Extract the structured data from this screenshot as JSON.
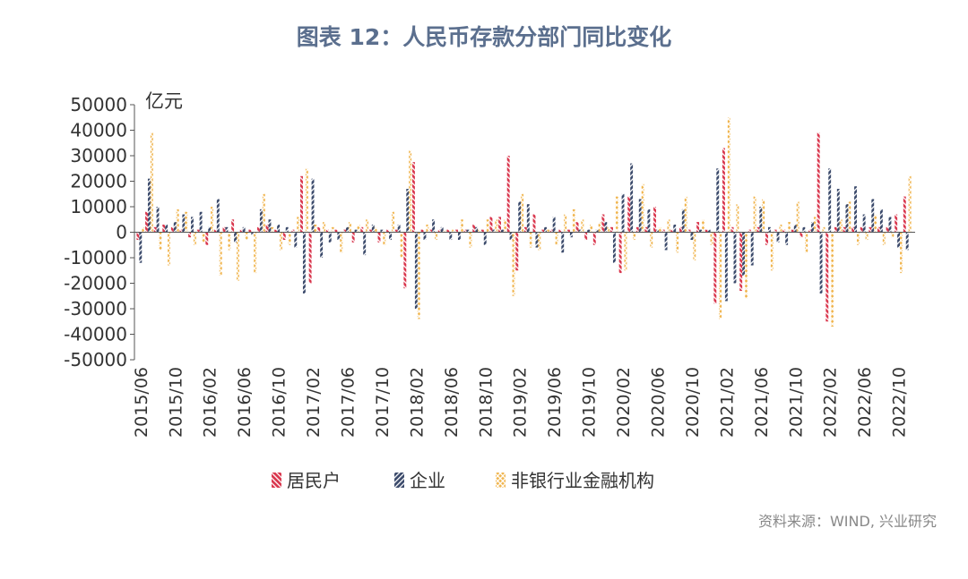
{
  "chart_data": {
    "type": "bar",
    "title": "图表 12：人民币存款分部门同比变化",
    "y_label": "亿元",
    "source": "资料来源：WIND, 兴业研究",
    "categories": [
      "2015/06",
      null,
      null,
      null,
      "2015/10",
      null,
      null,
      null,
      "2016/02",
      null,
      null,
      null,
      "2016/06",
      null,
      null,
      null,
      "2016/10",
      null,
      null,
      null,
      "2017/02",
      null,
      null,
      null,
      "2017/06",
      null,
      null,
      null,
      "2017/10",
      null,
      null,
      null,
      "2018/02",
      null,
      null,
      null,
      "2018/06",
      null,
      null,
      null,
      "2018/10",
      null,
      null,
      null,
      "2019/02",
      null,
      null,
      null,
      "2019/06",
      null,
      null,
      null,
      "2019/10",
      null,
      null,
      null,
      "2020/02",
      null,
      null,
      null,
      "2020/06",
      null,
      null,
      null,
      "2020/10",
      null,
      null,
      null,
      "2021/02",
      null,
      null,
      null,
      "2021/06",
      null,
      null,
      null,
      "2021/10",
      null,
      null,
      null,
      "2022/02",
      null,
      null,
      null,
      "2022/06",
      null,
      null,
      null,
      "2022/10",
      null
    ],
    "series": [
      {
        "name": "居民户",
        "color": "#d9364d",
        "values": [
          -3000,
          8000,
          2000,
          3000,
          2000,
          1000,
          -2000,
          1000,
          -5000,
          1000,
          2000,
          5000,
          1000,
          1000,
          2000,
          3000,
          1000,
          -3000,
          1000,
          22000,
          -20000,
          2000,
          1000,
          1000,
          1000,
          -4000,
          2000,
          1000,
          -4000,
          1000,
          1000,
          -22000,
          27500,
          1000,
          1000,
          1000,
          1000,
          1000,
          1000,
          3000,
          1000,
          6000,
          6000,
          30000,
          -15000,
          2000,
          7000,
          1000,
          1000,
          1000,
          1000,
          4000,
          -3000,
          -5000,
          7000,
          2000,
          -16000,
          14000,
          2000,
          2000,
          10000,
          1000,
          1000,
          2000,
          1000,
          4000,
          1000,
          -28000,
          33000,
          2000,
          -23000,
          1000,
          2000,
          -5000,
          1000,
          1000,
          1000,
          -2000,
          1000,
          39000,
          -35000,
          2000,
          2000,
          2000,
          2000,
          2000,
          2000,
          2000,
          7000,
          14000
        ]
      },
      {
        "name": "企业",
        "color": "#3b4a6b",
        "values": [
          -12000,
          21000,
          10000,
          3000,
          4000,
          7000,
          6000,
          8000,
          2000,
          13000,
          2000,
          -4000,
          2000,
          -1000,
          9000,
          5000,
          3000,
          2000,
          -6000,
          -24000,
          21000,
          -10000,
          -4000,
          -3000,
          2000,
          1000,
          -9000,
          3000,
          1000,
          -3000,
          3000,
          17000,
          -30000,
          -3000,
          5000,
          2000,
          -3000,
          -3000,
          1000,
          2000,
          -5000,
          1000,
          1000,
          -3000,
          12000,
          11000,
          -6000,
          2000,
          6000,
          -8000,
          -2000,
          1000,
          1000,
          1000,
          4000,
          -12000,
          15000,
          27000,
          13000,
          9000,
          1000,
          -7000,
          3000,
          9000,
          -3000,
          1000,
          1000,
          25000,
          -27000,
          -20000,
          -17000,
          -13000,
          10000,
          2000,
          -4000,
          -5000,
          3000,
          2000,
          4000,
          -24000,
          25000,
          17000,
          11000,
          18000,
          7000,
          13000,
          9000,
          6000,
          -6000,
          -7000
        ]
      },
      {
        "name": "非银行业金融机构",
        "color": "#f0b44c",
        "values": [
          2000,
          39000,
          -7000,
          -13000,
          9000,
          8000,
          -5000,
          -4000,
          10000,
          -17000,
          -7000,
          -19000,
          -3000,
          -16000,
          15000,
          2000,
          -7000,
          -5000,
          6000,
          25000,
          3000,
          4000,
          2000,
          -8000,
          4000,
          3000,
          5000,
          2000,
          -5000,
          8000,
          -10000,
          32000,
          -34000,
          3000,
          -3000,
          1000,
          1000,
          5000,
          -6000,
          1000,
          5000,
          5000,
          5000,
          -25000,
          15000,
          -6000,
          -7000,
          1000,
          -5000,
          7000,
          9000,
          5000,
          3000,
          4000,
          2000,
          14000,
          -15000,
          -3000,
          19000,
          -6000,
          2000,
          5000,
          -8000,
          14000,
          -11000,
          5000,
          -5000,
          -34000,
          45000,
          11000,
          -26000,
          14000,
          13000,
          -15000,
          3000,
          4000,
          12000,
          -8000,
          6000,
          2000,
          -37000,
          5000,
          12000,
          -5000,
          -3000,
          7000,
          -5000,
          -2000,
          -16000,
          22000
        ]
      }
    ],
    "ylim": [
      -50000,
      50000
    ],
    "yticks": [
      50000,
      40000,
      30000,
      20000,
      10000,
      0,
      -10000,
      -20000,
      -30000,
      -40000,
      -50000
    ]
  }
}
